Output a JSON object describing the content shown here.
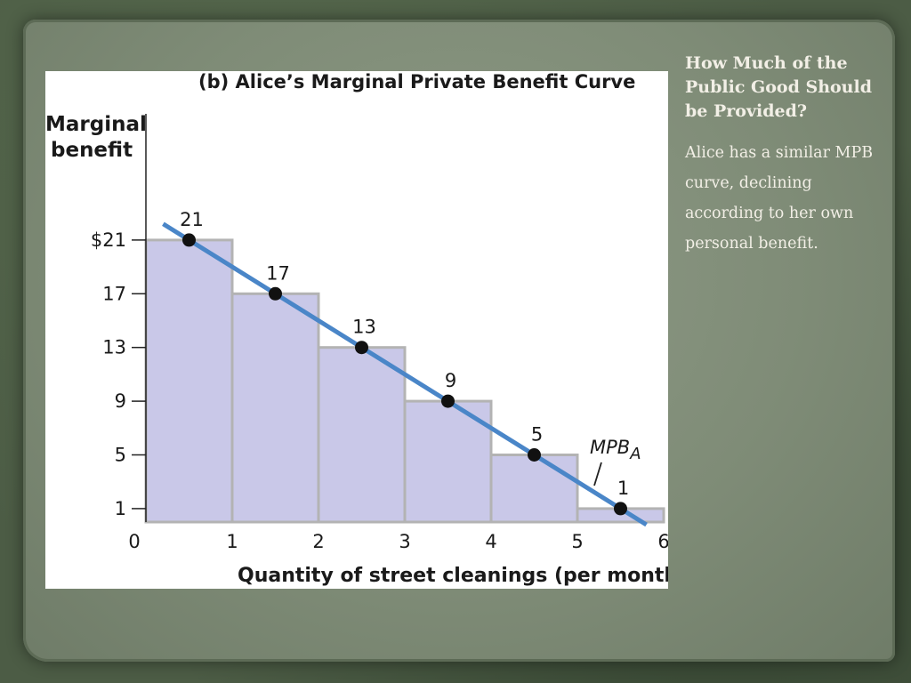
{
  "slide": {
    "title": "How Much of the Public Good Should be Provided?",
    "body": "Alice has a similar MPB curve, declining according to her own personal benefit."
  },
  "chart_data": {
    "type": "bar",
    "title": "(b) Alice’s Marginal Private Benefit Curve",
    "ylabel_line1": "Marginal",
    "ylabel_line2": "benefit",
    "xlabel": "Quantity of street cleanings (per month)",
    "x_ticks": [
      "0",
      "1",
      "2",
      "3",
      "4",
      "5",
      "6"
    ],
    "y_ticks": [
      "$21",
      "17",
      "13",
      "9",
      "5",
      "1"
    ],
    "y_tick_values": [
      21,
      17,
      13,
      9,
      5,
      1
    ],
    "bars": [
      {
        "from": 0,
        "to": 1,
        "value": 21,
        "label": "21"
      },
      {
        "from": 1,
        "to": 2,
        "value": 17,
        "label": "17"
      },
      {
        "from": 2,
        "to": 3,
        "value": 13,
        "label": "13"
      },
      {
        "from": 3,
        "to": 4,
        "value": 9,
        "label": "9"
      },
      {
        "from": 4,
        "to": 5,
        "value": 5,
        "label": "5"
      },
      {
        "from": 5,
        "to": 6,
        "value": 1,
        "label": "1"
      }
    ],
    "curve": {
      "name": "MPB",
      "subscript": "A",
      "x": [
        0.5,
        1.5,
        2.5,
        3.5,
        4.5,
        5.5
      ],
      "y": [
        21,
        17,
        13,
        9,
        5,
        1
      ]
    },
    "xlim": [
      0,
      6
    ],
    "ylim": [
      0,
      29
    ],
    "colors": {
      "bar_fill": "#c9c8e8",
      "bar_stroke": "#b3b3b3",
      "curve": "#4a86c8",
      "point": "#111111"
    }
  }
}
